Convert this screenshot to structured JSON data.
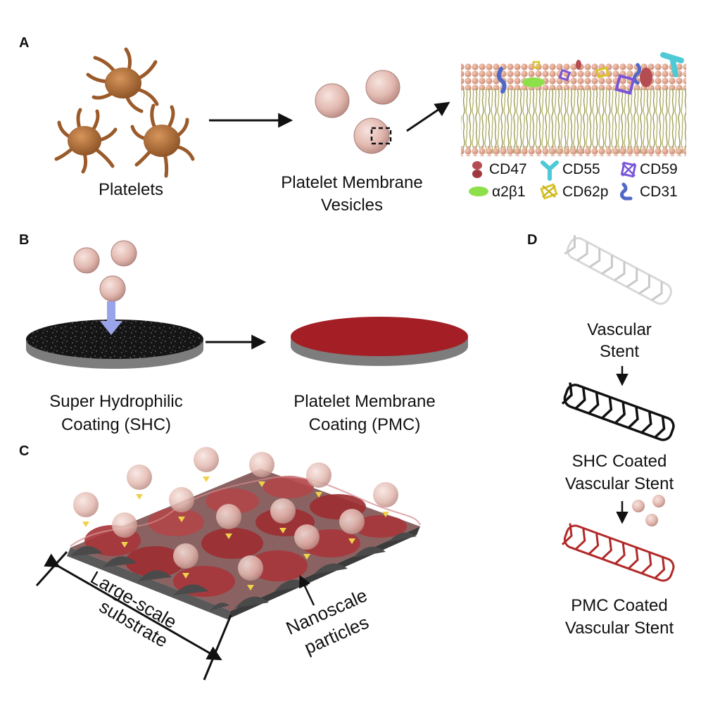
{
  "panels": {
    "a": "A",
    "b": "B",
    "c": "C",
    "d": "D"
  },
  "panel_a": {
    "platelets_label": "Platelets",
    "vesicles_label_line1": "Platelet Membrane",
    "vesicles_label_line2": "Vesicles"
  },
  "legend": [
    {
      "label": "CD47",
      "color": "#b44d52",
      "icon": "cd47-icon"
    },
    {
      "label": "CD55",
      "color": "#4fc9d6",
      "icon": "cd55-icon"
    },
    {
      "label": "CD59",
      "color": "#7a55d8",
      "icon": "cd59-icon"
    },
    {
      "label": "α2β1",
      "color": "#8ee04a",
      "icon": "a2b1-icon"
    },
    {
      "label": "CD62p",
      "color": "#d9c52a",
      "icon": "cd62p-icon"
    },
    {
      "label": "CD31",
      "color": "#4f67c8",
      "icon": "cd31-icon"
    }
  ],
  "panel_b": {
    "shc_line1": "Super Hydrophilic",
    "shc_line2": "Coating (SHC)",
    "pmc_line1": "Platelet Membrane",
    "pmc_line2": "Coating (PMC)"
  },
  "panel_c": {
    "substrate_line1": "Large-scale",
    "substrate_line2": "substrate",
    "particles_line1": "Nanoscale",
    "particles_line2": "particles"
  },
  "panel_d": {
    "stent_line1": "Vascular",
    "stent_line2": "Stent",
    "shc_line1": "SHC Coated",
    "shc_line2": "Vascular Stent",
    "pmc_line1": "PMC Coated",
    "pmc_line2": "Vascular Stent"
  },
  "colors": {
    "platelet": "#b3703a",
    "vesicle": "#e3bdb5",
    "membrane_head": "#e8a990",
    "membrane_tail": "#b8b870",
    "shc": "#1a1a1a",
    "pmc": "#a31f25",
    "arrow_drop": "#9aa4e8",
    "arrow_small": "#f0d24a"
  }
}
